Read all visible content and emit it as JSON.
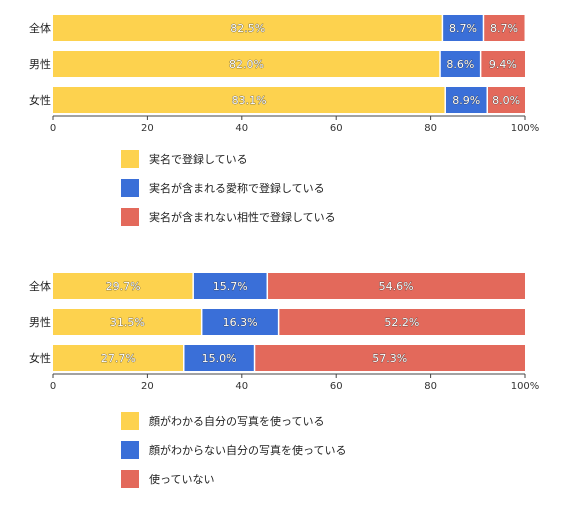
{
  "chart_data": [
    {
      "type": "bar",
      "orientation": "horizontal",
      "stacked": true,
      "categories": [
        "全体",
        "男性",
        "女性"
      ],
      "series": [
        {
          "name": "実名で登録している",
          "color": "#FDD24E",
          "values": [
            82.5,
            82.0,
            83.1
          ]
        },
        {
          "name": "実名が含まれる愛称で登録している",
          "color": "#3A6FD8",
          "values": [
            8.7,
            8.6,
            8.9
          ]
        },
        {
          "name": "実名が含まれない相性で登録している",
          "color": "#E3695B",
          "values": [
            8.7,
            9.4,
            8.0
          ]
        }
      ],
      "xlim": [
        0,
        100
      ],
      "xticks": [
        "0",
        "20",
        "40",
        "60",
        "80",
        "100%"
      ],
      "data_labels": [
        [
          "82.5%",
          "8.7%",
          "8.7%"
        ],
        [
          "82.0%",
          "8.6%",
          "9.4%"
        ],
        [
          "83.1%",
          "8.9%",
          "8.0%"
        ]
      ],
      "legend_position": "bottom"
    },
    {
      "type": "bar",
      "orientation": "horizontal",
      "stacked": true,
      "categories": [
        "全体",
        "男性",
        "女性"
      ],
      "series": [
        {
          "name": "顔がわかる自分の写真を使っている",
          "color": "#FDD24E",
          "values": [
            29.7,
            31.5,
            27.7
          ]
        },
        {
          "name": "顔がわからない自分の写真を使っている",
          "color": "#3A6FD8",
          "values": [
            15.7,
            16.3,
            15.0
          ]
        },
        {
          "name": "使っていない",
          "color": "#E3695B",
          "values": [
            54.6,
            52.2,
            57.3
          ]
        }
      ],
      "xlim": [
        0,
        100
      ],
      "xticks": [
        "0",
        "20",
        "40",
        "60",
        "80",
        "100%"
      ],
      "data_labels": [
        [
          "29.7%",
          "15.7%",
          "54.6%"
        ],
        [
          "31.5%",
          "16.3%",
          "52.2%"
        ],
        [
          "27.7%",
          "15.0%",
          "57.3%"
        ]
      ],
      "legend_position": "bottom"
    }
  ]
}
